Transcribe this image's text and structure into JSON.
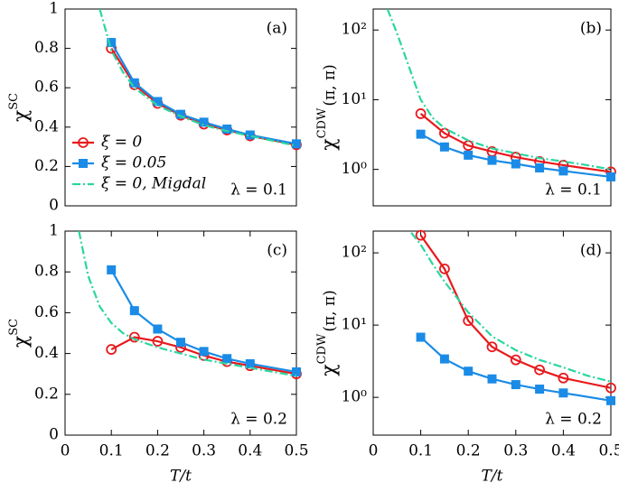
{
  "chart_data": [
    {
      "type": "line",
      "panel": "(a)",
      "annotation": "λ = 0.1",
      "ylabel": {
        "text": "χ",
        "superscript": "SC"
      },
      "xlim": [
        0,
        0.5
      ],
      "ylim": [
        0,
        1
      ],
      "yticks": [
        0,
        0.2,
        0.4,
        0.6,
        0.8,
        1
      ],
      "legend": "center left",
      "series": [
        {
          "name": "ξ = 0",
          "color": "#e8191c",
          "marker": "circle",
          "linestyle": "solid",
          "x": [
            0.1,
            0.15,
            0.2,
            0.25,
            0.3,
            0.35,
            0.4,
            0.5
          ],
          "values": [
            0.8,
            0.615,
            0.52,
            0.46,
            0.415,
            0.385,
            0.355,
            0.31
          ]
        },
        {
          "name": "ξ = 0.05",
          "color": "#1a8be6",
          "marker": "square",
          "linestyle": "solid",
          "x": [
            0.1,
            0.15,
            0.2,
            0.25,
            0.3,
            0.35,
            0.4,
            0.5
          ],
          "values": [
            0.83,
            0.625,
            0.53,
            0.465,
            0.425,
            0.39,
            0.36,
            0.315
          ]
        },
        {
          "name": "ξ = 0,  Migdal",
          "color": "#2ad6a0",
          "marker": "none",
          "linestyle": "dashdot",
          "x": [
            0.075,
            0.1,
            0.125,
            0.15,
            0.2,
            0.25,
            0.3,
            0.35,
            0.4,
            0.45,
            0.5
          ],
          "values": [
            1.0,
            0.79,
            0.68,
            0.6,
            0.51,
            0.455,
            0.41,
            0.38,
            0.355,
            0.33,
            0.305
          ]
        }
      ]
    },
    {
      "type": "line",
      "panel": "(b)",
      "annotation": "λ = 0.1",
      "ylabel": {
        "text": "χ",
        "superscript": "CDW",
        "suffix": "(π, π)"
      },
      "xlim": [
        0,
        0.5
      ],
      "ylim": [
        0.3,
        200
      ],
      "yscale": "log",
      "yticks": [
        {
          "value": 1,
          "label": "10⁰"
        },
        {
          "value": 10,
          "label": "10¹"
        },
        {
          "value": 100,
          "label": "10²"
        }
      ],
      "series": [
        {
          "color": "#e8191c",
          "marker": "circle",
          "linestyle": "solid",
          "x": [
            0.1,
            0.15,
            0.2,
            0.25,
            0.3,
            0.35,
            0.4,
            0.5
          ],
          "values": [
            6.3,
            3.3,
            2.2,
            1.8,
            1.5,
            1.3,
            1.15,
            0.92
          ]
        },
        {
          "color": "#1a8be6",
          "marker": "square",
          "linestyle": "solid",
          "x": [
            0.1,
            0.15,
            0.2,
            0.25,
            0.3,
            0.35,
            0.4,
            0.5
          ],
          "values": [
            3.2,
            2.1,
            1.6,
            1.35,
            1.2,
            1.05,
            0.95,
            0.78
          ]
        },
        {
          "color": "#2ad6a0",
          "marker": "none",
          "linestyle": "dashdot",
          "x": [
            0.03,
            0.05,
            0.075,
            0.1,
            0.125,
            0.15,
            0.2,
            0.25,
            0.3,
            0.35,
            0.4,
            0.45,
            0.5
          ],
          "values": [
            200,
            90,
            30,
            10,
            5.5,
            3.9,
            2.6,
            2.0,
            1.7,
            1.45,
            1.3,
            1.15,
            1.0
          ]
        }
      ]
    },
    {
      "type": "line",
      "panel": "(c)",
      "annotation": "λ = 0.2",
      "ylabel": {
        "text": "χ",
        "superscript": "SC"
      },
      "xlabel": "T/t",
      "xlim": [
        0,
        0.5
      ],
      "xticks": [
        0,
        0.1,
        0.2,
        0.3,
        0.4,
        0.5
      ],
      "ylim": [
        0,
        1
      ],
      "yticks": [
        0,
        0.2,
        0.4,
        0.6,
        0.8,
        1
      ],
      "series": [
        {
          "color": "#e8191c",
          "marker": "circle",
          "linestyle": "solid",
          "x": [
            0.1,
            0.15,
            0.2,
            0.25,
            0.3,
            0.35,
            0.4,
            0.5
          ],
          "values": [
            0.42,
            0.48,
            0.46,
            0.43,
            0.39,
            0.36,
            0.34,
            0.3
          ]
        },
        {
          "color": "#1a8be6",
          "marker": "square",
          "linestyle": "solid",
          "x": [
            0.1,
            0.15,
            0.2,
            0.25,
            0.3,
            0.35,
            0.4,
            0.5
          ],
          "values": [
            0.81,
            0.61,
            0.52,
            0.455,
            0.41,
            0.375,
            0.35,
            0.31
          ]
        },
        {
          "color": "#2ad6a0",
          "marker": "none",
          "linestyle": "dashdot",
          "x": [
            0.03,
            0.05,
            0.075,
            0.1,
            0.125,
            0.15,
            0.2,
            0.25,
            0.3,
            0.35,
            0.4,
            0.45,
            0.5
          ],
          "values": [
            1.0,
            0.78,
            0.63,
            0.55,
            0.5,
            0.47,
            0.43,
            0.4,
            0.37,
            0.35,
            0.33,
            0.31,
            0.29
          ]
        }
      ]
    },
    {
      "type": "line",
      "panel": "(d)",
      "annotation": "λ = 0.2",
      "ylabel": {
        "text": "χ",
        "superscript": "CDW",
        "suffix": "(π, π)"
      },
      "xlabel": "T/t",
      "xlim": [
        0,
        0.5
      ],
      "xticks": [
        0,
        0.1,
        0.2,
        0.3,
        0.4,
        0.5
      ],
      "ylim": [
        0.3,
        200
      ],
      "yscale": "log",
      "yticks": [
        {
          "value": 1,
          "label": "10⁰"
        },
        {
          "value": 10,
          "label": "10¹"
        },
        {
          "value": 100,
          "label": "10²"
        }
      ],
      "series": [
        {
          "color": "#e8191c",
          "marker": "circle",
          "linestyle": "solid",
          "x": [
            0.1,
            0.15,
            0.2,
            0.25,
            0.3,
            0.35,
            0.4,
            0.5
          ],
          "values": [
            175,
            60,
            11.5,
            5.0,
            3.3,
            2.4,
            1.85,
            1.35
          ]
        },
        {
          "color": "#1a8be6",
          "marker": "square",
          "linestyle": "solid",
          "x": [
            0.1,
            0.15,
            0.2,
            0.25,
            0.3,
            0.35,
            0.4,
            0.5
          ],
          "values": [
            6.8,
            3.4,
            2.3,
            1.8,
            1.5,
            1.3,
            1.15,
            0.9
          ]
        },
        {
          "color": "#2ad6a0",
          "marker": "none",
          "linestyle": "dashdot",
          "x": [
            0.08,
            0.1,
            0.125,
            0.15,
            0.2,
            0.25,
            0.3,
            0.35,
            0.4,
            0.45,
            0.5
          ],
          "values": [
            190,
            130,
            70,
            40,
            15,
            7,
            4.5,
            3.3,
            2.6,
            2.0,
            1.65
          ]
        }
      ]
    }
  ]
}
